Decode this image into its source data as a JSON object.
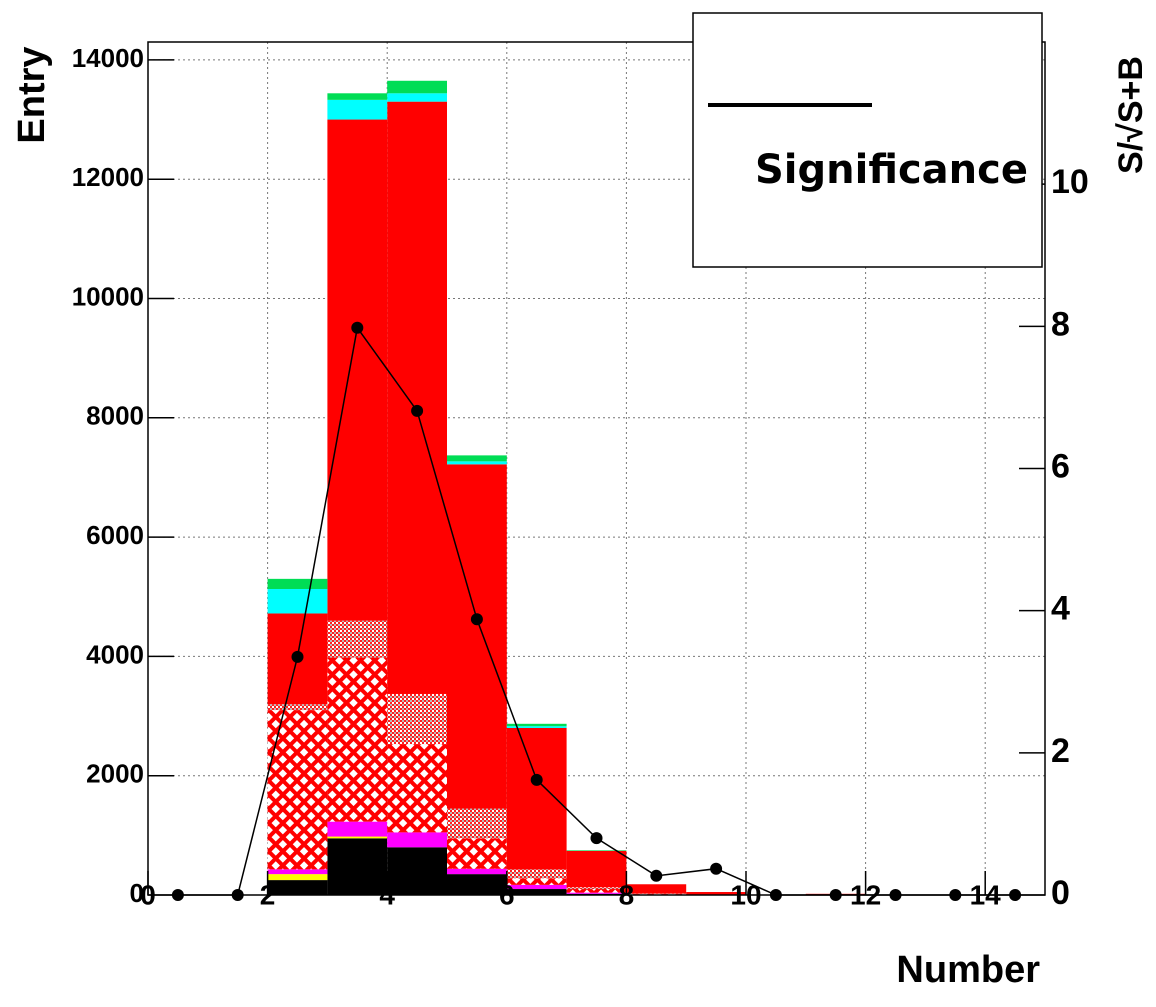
{
  "chart_data": {
    "type": "histogram",
    "stacked": true,
    "grid": true,
    "legend": "top-right",
    "x_label": "Number",
    "y_label": "Entry",
    "y2_label": "S/√S+B",
    "bins": [
      0,
      1,
      2,
      3,
      4,
      5,
      6,
      7,
      8,
      9,
      10,
      11,
      12,
      13,
      14,
      15
    ],
    "xlim": [
      0,
      15
    ],
    "ylim": [
      0,
      14300
    ],
    "y2lim": [
      0,
      12
    ],
    "xticks": [
      0,
      2,
      4,
      6,
      8,
      10,
      12,
      14
    ],
    "yticks": [
      0,
      2000,
      4000,
      6000,
      8000,
      10000,
      12000,
      14000
    ],
    "y2ticks": [
      0,
      2,
      4,
      6,
      8,
      10
    ],
    "series": [
      {
        "color": "#000000",
        "values": [
          0,
          0,
          250,
          950,
          800,
          350,
          100,
          20,
          5,
          0,
          0,
          0,
          0,
          0,
          0
        ]
      },
      {
        "color": "#ffff00",
        "values": [
          0,
          0,
          100,
          30,
          0,
          0,
          0,
          0,
          0,
          0,
          0,
          0,
          0,
          0,
          0
        ]
      },
      {
        "color": "#ff00ff",
        "values": [
          0,
          0,
          80,
          250,
          250,
          90,
          70,
          20,
          5,
          0,
          0,
          0,
          0,
          0,
          0
        ]
      },
      {
        "color": "#ff0000",
        "pattern": "crosshatch",
        "values": [
          0,
          0,
          2670,
          2750,
          1480,
          510,
          110,
          60,
          10,
          0,
          0,
          0,
          0,
          0,
          0
        ]
      },
      {
        "color": "#888888",
        "pattern": "checker",
        "values": [
          0,
          0,
          100,
          620,
          840,
          500,
          150,
          30,
          5,
          0,
          0,
          0,
          0,
          0,
          0
        ]
      },
      {
        "color": "#ff0000",
        "values": [
          0,
          0,
          1520,
          8400,
          9930,
          5770,
          2370,
          610,
          155,
          50,
          0,
          20,
          0,
          0,
          0
        ]
      },
      {
        "color": "#00ffff",
        "values": [
          0,
          0,
          410,
          330,
          140,
          50,
          30,
          0,
          0,
          0,
          0,
          0,
          0,
          0,
          0
        ]
      },
      {
        "color": "#00dd55",
        "values": [
          0,
          0,
          170,
          110,
          210,
          100,
          40,
          10,
          0,
          0,
          0,
          0,
          0,
          0,
          0
        ]
      }
    ],
    "overlay": {
      "type": "line",
      "name": "Significance",
      "axis": "y2",
      "color": "#000000",
      "x": [
        0.5,
        1.5,
        2.5,
        3.5,
        4.5,
        5.5,
        6.5,
        7.5,
        8.5,
        9.5,
        10.5,
        11.5,
        12.5,
        13.5,
        14.5
      ],
      "values": [
        0,
        0,
        3.35,
        7.98,
        6.81,
        3.88,
        1.62,
        0.8,
        0.27,
        0.37,
        0,
        0,
        0,
        0,
        0
      ]
    }
  }
}
